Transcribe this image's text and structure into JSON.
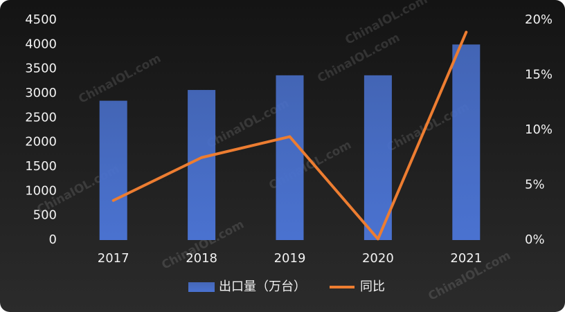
{
  "chart_data": {
    "type": "bar-line",
    "watermark": "ChinaIOL.com",
    "categories": [
      "2017",
      "2018",
      "2019",
      "2020",
      "2021"
    ],
    "series": [
      {
        "name": "出口量（万台）",
        "type": "bar",
        "color": "#4a72d0",
        "values": [
          2850,
          3070,
          3370,
          3370,
          4000
        ]
      },
      {
        "name": "同比",
        "type": "line",
        "axis": "y2",
        "color": "#ed7d31",
        "values": [
          3.6,
          7.5,
          9.4,
          0.1,
          18.9
        ]
      }
    ],
    "ylim": [
      0,
      4500
    ],
    "yticks": [
      0,
      500,
      1000,
      1500,
      2000,
      2500,
      3000,
      3500,
      4000,
      4500
    ],
    "y2lim": [
      0,
      20
    ],
    "y2ticks": [
      {
        "value": 0,
        "label": "0%"
      },
      {
        "value": 5,
        "label": "5%"
      },
      {
        "value": 10,
        "label": "10%"
      },
      {
        "value": 15,
        "label": "15%"
      },
      {
        "value": 20,
        "label": "20%"
      }
    ],
    "legend": "bottom"
  }
}
